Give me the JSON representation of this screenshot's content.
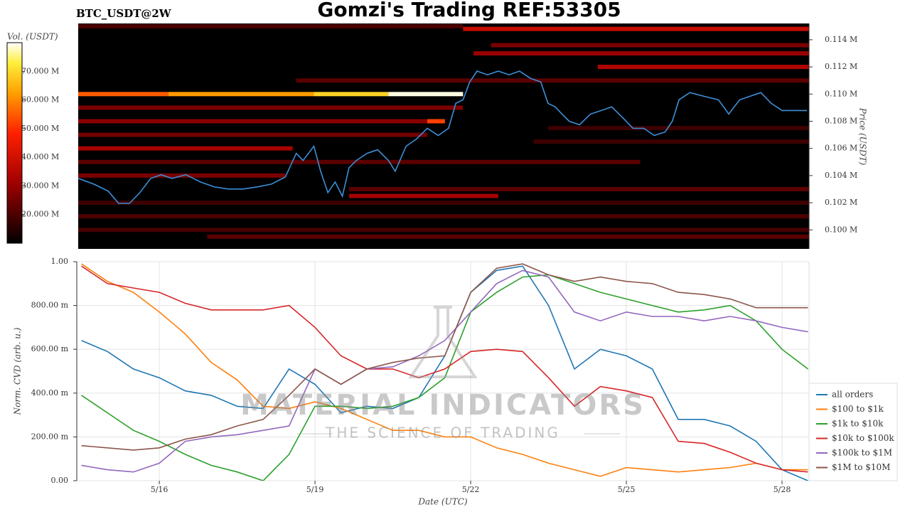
{
  "chart_data": [
    {
      "type": "heatmap",
      "title": "Gomzi's Trading REF:53305",
      "subtitle": "BTC_USDT@2W",
      "ylabel": "Price (USDT)",
      "colorbar_label": "Vol. (USDT)",
      "xlim": [
        14.41,
        28.52
      ],
      "ylim": [
        98600,
        115200
      ],
      "yticks": [
        {
          "value": 100000,
          "label": "0.100 M"
        },
        {
          "value": 102000,
          "label": "0.102 M"
        },
        {
          "value": 104000,
          "label": "0.104 M"
        },
        {
          "value": 106000,
          "label": "0.106 M"
        },
        {
          "value": 108000,
          "label": "0.108 M"
        },
        {
          "value": 110000,
          "label": "0.110 M"
        },
        {
          "value": 112000,
          "label": "0.112 M"
        },
        {
          "value": 114000,
          "label": "0.114 M"
        }
      ],
      "clim": [
        10000000,
        80000000
      ],
      "cticks": [
        {
          "value": 20000000,
          "label": "20.000 M"
        },
        {
          "value": 30000000,
          "label": "30.000 M"
        },
        {
          "value": 40000000,
          "label": "40.000 M"
        },
        {
          "value": 50000000,
          "label": "50.000 M"
        },
        {
          "value": 60000000,
          "label": "60.000 M"
        },
        {
          "value": 70000000,
          "label": "70.000 M"
        }
      ],
      "cells": [
        {
          "x": [
            14.41,
            21.84
          ],
          "y": 115000,
          "value": 20000000
        },
        {
          "x": [
            21.84,
            28.52
          ],
          "y": 114800,
          "value": 38000000
        },
        {
          "x": [
            22.38,
            28.52
          ],
          "y": 113600,
          "value": 26000000
        },
        {
          "x": [
            22.04,
            28.52
          ],
          "y": 113000,
          "value": 30000000
        },
        {
          "x": [
            24.44,
            28.52
          ],
          "y": 112000,
          "value": 34000000
        },
        {
          "x": [
            18.62,
            28.52
          ],
          "y": 111000,
          "value": 22000000
        },
        {
          "x": [
            14.41,
            21.84
          ],
          "y": 109000,
          "value": 26000000
        },
        {
          "x": [
            14.41,
            21.42
          ],
          "y": 108000,
          "value": 28000000
        },
        {
          "x": [
            21.15,
            21.49
          ],
          "y": 108000,
          "value": 52000000
        },
        {
          "x": [
            23.48,
            28.52
          ],
          "y": 107500,
          "value": 18000000
        },
        {
          "x": [
            14.41,
            21.15
          ],
          "y": 107000,
          "value": 25000000
        },
        {
          "x": [
            23.2,
            28.52
          ],
          "y": 106500,
          "value": 18000000
        },
        {
          "x": [
            14.41,
            18.55
          ],
          "y": 106000,
          "value": 32000000
        },
        {
          "x": [
            14.41,
            25.26
          ],
          "y": 105000,
          "value": 22000000
        },
        {
          "x": [
            14.41,
            18.41
          ],
          "y": 104000,
          "value": 26000000
        },
        {
          "x": [
            19.64,
            28.52
          ],
          "y": 103000,
          "value": 22000000
        },
        {
          "x": [
            19.64,
            22.52
          ],
          "y": 102500,
          "value": 32000000
        },
        {
          "x": [
            14.41,
            28.52
          ],
          "y": 102000,
          "value": 18000000
        },
        {
          "x": [
            14.41,
            28.52
          ],
          "y": 101000,
          "value": 20000000
        },
        {
          "x": [
            14.41,
            28.52
          ],
          "y": 100000,
          "value": 19000000
        },
        {
          "x": [
            16.9,
            28.52
          ],
          "y": 99500,
          "value": 22000000
        },
        {
          "x": [
            14.41,
            16.15
          ],
          "y": 110000,
          "value": 55000000
        },
        {
          "x": [
            16.15,
            18.96
          ],
          "y": 110000,
          "value": 62000000
        },
        {
          "x": [
            18.96,
            20.4
          ],
          "y": 110000,
          "value": 69000000
        },
        {
          "x": [
            20.4,
            21.84
          ],
          "y": 110000,
          "value": 79000000
        }
      ],
      "series": [
        {
          "color": "#3d8fd8",
          "x": [
            14.41,
            14.71,
            14.99,
            15.19,
            15.4,
            15.6,
            15.81,
            16.01,
            16.22,
            16.49,
            16.77,
            17.04,
            17.31,
            17.59,
            17.86,
            18.14,
            18.41,
            18.62,
            18.75,
            18.96,
            19.09,
            19.23,
            19.37,
            19.51,
            19.64,
            19.78,
            19.99,
            20.19,
            20.4,
            20.53,
            20.74,
            20.94,
            21.15,
            21.36,
            21.56,
            21.7,
            21.84,
            21.97,
            22.11,
            22.31,
            22.52,
            22.73,
            22.93,
            23.14,
            23.34,
            23.48,
            23.62,
            23.75,
            23.89,
            24.09,
            24.3,
            24.51,
            24.71,
            24.92,
            25.12,
            25.33,
            25.53,
            25.74,
            25.88,
            26.01,
            26.22,
            26.49,
            26.77,
            26.97,
            27.18,
            27.38,
            27.59,
            27.79,
            28.0,
            28.2,
            28.48
          ],
          "values": [
            103790,
            103370,
            102850,
            101950,
            101950,
            102740,
            103790,
            104060,
            103790,
            104060,
            103530,
            103160,
            103010,
            103010,
            103160,
            103370,
            103900,
            105640,
            105110,
            106160,
            104320,
            102740,
            103530,
            102480,
            104580,
            105110,
            105640,
            105900,
            105110,
            104320,
            106160,
            106690,
            107480,
            106950,
            107480,
            109320,
            109580,
            110900,
            111690,
            111420,
            111690,
            111420,
            111690,
            111160,
            110900,
            109320,
            109060,
            108530,
            108000,
            107740,
            108530,
            108790,
            109060,
            108270,
            107480,
            107480,
            106950,
            107210,
            108000,
            109580,
            110110,
            109840,
            109580,
            108530,
            109580,
            109840,
            110110,
            109320,
            108790,
            108790,
            108790
          ]
        }
      ]
    },
    {
      "type": "line",
      "xlabel": "Date (UTC)",
      "ylabel": "Norm. CVD (arb. u.)",
      "xlim": [
        14.41,
        28.52
      ],
      "ylim": [
        0,
        1
      ],
      "xticks": [
        {
          "value": 16,
          "label": "5/16"
        },
        {
          "value": 19,
          "label": "5/19"
        },
        {
          "value": 22,
          "label": "5/22"
        },
        {
          "value": 25,
          "label": "5/25"
        },
        {
          "value": 28,
          "label": "5/28"
        }
      ],
      "yticks": [
        {
          "value": 0,
          "label": "0.00"
        },
        {
          "value": 0.2,
          "label": "200.00 m"
        },
        {
          "value": 0.4,
          "label": "400.00 m"
        },
        {
          "value": 0.6,
          "label": "600.00 m"
        },
        {
          "value": 0.8,
          "label": "800.00 m"
        },
        {
          "value": 1,
          "label": "1.00"
        }
      ],
      "grid": true,
      "legend": "lower right",
      "x": [
        14.5,
        15,
        15.5,
        16,
        16.5,
        17,
        17.5,
        18,
        18.5,
        19,
        19.5,
        20,
        20.5,
        21,
        21.5,
        22,
        22.5,
        23,
        23.5,
        24,
        24.5,
        25,
        25.5,
        26,
        26.5,
        27,
        27.5,
        28,
        28.5
      ],
      "series": [
        {
          "name": "all orders",
          "color": "#1f77b4",
          "values": [
            0.64,
            0.59,
            0.51,
            0.47,
            0.41,
            0.39,
            0.34,
            0.33,
            0.51,
            0.44,
            0.31,
            0.34,
            0.33,
            0.38,
            0.57,
            0.86,
            0.96,
            0.98,
            0.8,
            0.51,
            0.6,
            0.57,
            0.51,
            0.28,
            0.28,
            0.25,
            0.18,
            0.05,
            0.0
          ]
        },
        {
          "name": "$100 to $1k",
          "color": "#ff7f0e",
          "values": [
            0.99,
            0.91,
            0.86,
            0.77,
            0.67,
            0.54,
            0.46,
            0.34,
            0.33,
            0.36,
            0.33,
            0.28,
            0.23,
            0.23,
            0.2,
            0.2,
            0.15,
            0.12,
            0.08,
            0.05,
            0.02,
            0.06,
            0.05,
            0.04,
            0.05,
            0.06,
            0.08,
            0.05,
            0.05
          ]
        },
        {
          "name": "$1k to $10k",
          "color": "#2ca02c",
          "values": [
            0.39,
            0.31,
            0.23,
            0.18,
            0.12,
            0.07,
            0.04,
            0.0,
            0.12,
            0.34,
            0.34,
            0.33,
            0.34,
            0.38,
            0.47,
            0.77,
            0.86,
            0.93,
            0.94,
            0.9,
            0.86,
            0.83,
            0.8,
            0.77,
            0.78,
            0.8,
            0.73,
            0.6,
            0.51
          ]
        },
        {
          "name": "$10k to $100k",
          "color": "#d62728",
          "values": [
            0.98,
            0.9,
            0.88,
            0.86,
            0.81,
            0.78,
            0.78,
            0.78,
            0.8,
            0.7,
            0.57,
            0.51,
            0.51,
            0.47,
            0.51,
            0.59,
            0.6,
            0.59,
            0.47,
            0.34,
            0.43,
            0.41,
            0.38,
            0.18,
            0.17,
            0.13,
            0.08,
            0.05,
            0.04
          ]
        },
        {
          "name": "$100k to $1M",
          "color": "#9467bd",
          "values": [
            0.07,
            0.05,
            0.04,
            0.08,
            0.18,
            0.2,
            0.21,
            0.23,
            0.25,
            0.51,
            0.44,
            0.51,
            0.52,
            0.57,
            0.64,
            0.77,
            0.9,
            0.96,
            0.93,
            0.77,
            0.73,
            0.77,
            0.75,
            0.75,
            0.73,
            0.75,
            0.73,
            0.7,
            0.68
          ]
        },
        {
          "name": "$1M to $10M",
          "color": "#8c564b",
          "values": [
            0.16,
            0.15,
            0.14,
            0.15,
            0.19,
            0.21,
            0.25,
            0.28,
            0.39,
            0.51,
            0.44,
            0.51,
            0.54,
            0.56,
            0.57,
            0.86,
            0.97,
            0.99,
            0.94,
            0.91,
            0.93,
            0.91,
            0.9,
            0.86,
            0.85,
            0.83,
            0.79,
            0.79,
            0.79
          ]
        }
      ]
    }
  ],
  "watermark": {
    "title": "MATERIAL INDICATORS",
    "subtitle": "THE SCIENCE OF TRADING"
  }
}
